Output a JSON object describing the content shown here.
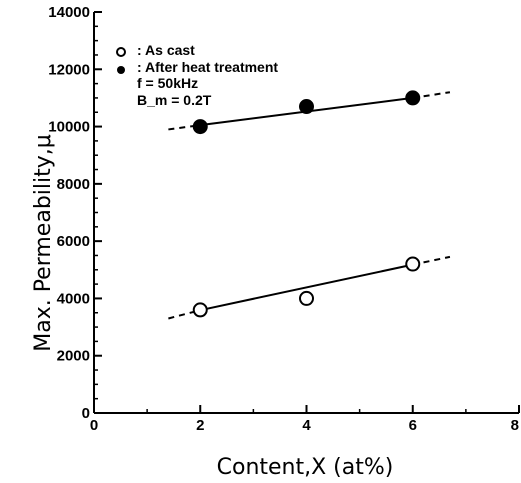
{
  "chart_data": {
    "type": "scatter",
    "xlabel": "Content,X (at%)",
    "ylabel": "Max. Permeability,μ",
    "xlim": [
      0,
      8
    ],
    "ylim": [
      0,
      14000
    ],
    "x_ticks": [
      0,
      2,
      4,
      6,
      8
    ],
    "y_ticks": [
      0,
      2000,
      4000,
      6000,
      8000,
      10000,
      12000,
      14000
    ],
    "grid": false,
    "legend_position": "top-left",
    "legend": [
      {
        "marker": "open-circle",
        "label": ": As cast"
      },
      {
        "marker": "filled-circle",
        "label": ": After heat treatment"
      }
    ],
    "conditions": [
      "f = 50kHz",
      "B_m = 0.2T"
    ],
    "series": [
      {
        "name": "As cast",
        "marker": "open-circle",
        "x": [
          2,
          4,
          6
        ],
        "y": [
          3600,
          4000,
          5200
        ],
        "fit": {
          "solid_from": [
            2,
            3590
          ],
          "solid_to": [
            6,
            5180
          ],
          "dashed_start": [
            1.4,
            3300
          ],
          "dashed_end": [
            6.7,
            5450
          ]
        }
      },
      {
        "name": "After heat treatment",
        "marker": "filled-circle",
        "x": [
          2,
          4,
          6
        ],
        "y": [
          10000,
          10700,
          11000
        ],
        "fit": {
          "solid_from": [
            2,
            10050
          ],
          "solid_to": [
            6,
            11000
          ],
          "dashed_start": [
            1.4,
            9900
          ],
          "dashed_end": [
            6.7,
            11200
          ]
        }
      }
    ]
  }
}
